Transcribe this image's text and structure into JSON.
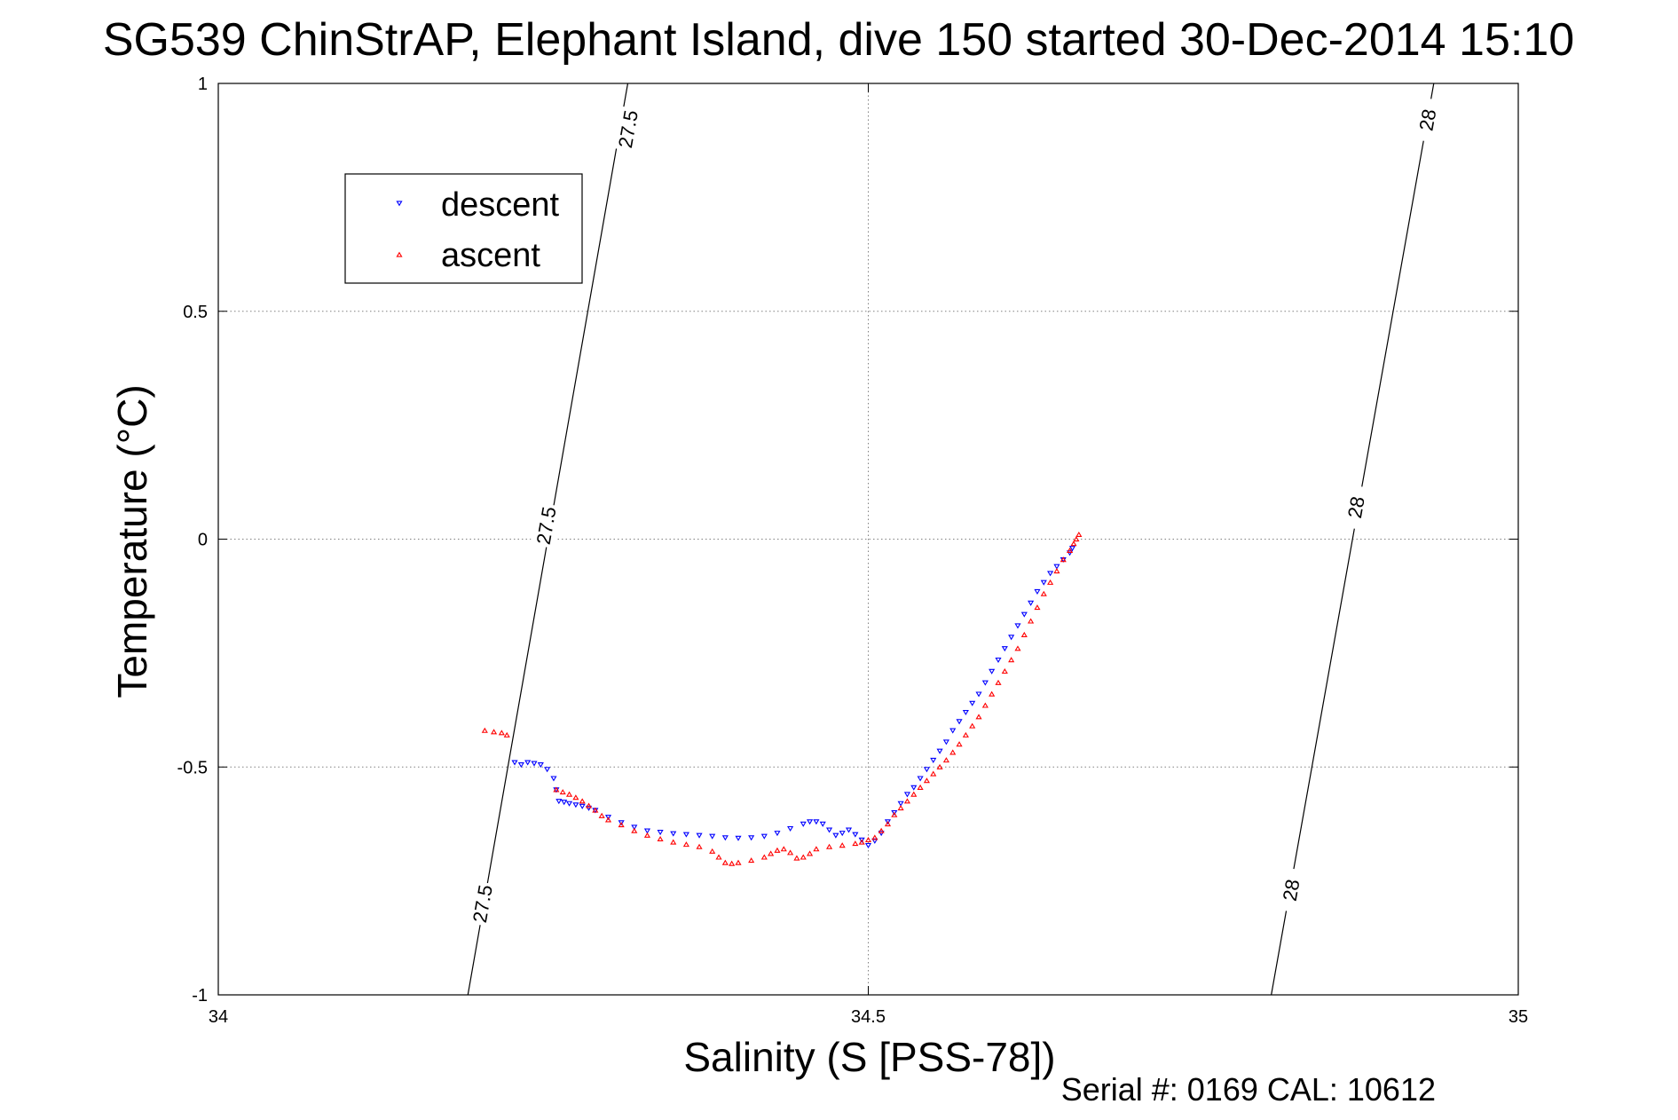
{
  "chart_data": {
    "type": "scatter",
    "title": "SG539 ChinStrAP, Elephant Island, dive 150 started 30-Dec-2014 15:10",
    "xlabel": "Salinity (S [PSS-78])",
    "ylabel": "Temperature (°C)",
    "xlim": [
      34,
      35
    ],
    "ylim": [
      -1,
      1
    ],
    "x_ticks": [
      34,
      34.5,
      35
    ],
    "x_tick_labels": [
      "34",
      "34.5",
      "35"
    ],
    "y_ticks": [
      -1,
      -0.5,
      0,
      0.5,
      1
    ],
    "y_tick_labels": [
      "-1",
      "-0.5",
      "0",
      "0.5",
      "1"
    ],
    "grid": true,
    "legend_position": "top-left",
    "footer": "Serial #: 0169 CAL: 10612",
    "colors": {
      "descent": "#0000ff",
      "ascent": "#ff0000",
      "contour": "#000000",
      "grid": "#808080"
    },
    "contours": [
      {
        "label": "27.5",
        "x": [
          34.192,
          34.315
        ],
        "y": [
          -1,
          1
        ],
        "label_positions": [
          [
            34.203,
            -0.8
          ],
          [
            34.252,
            0.03
          ],
          [
            34.315,
            0.9
          ]
        ]
      },
      {
        "label": "28",
        "x": [
          34.81,
          34.935
        ],
        "y": [
          -1,
          1
        ],
        "label_positions": [
          [
            34.825,
            -0.77
          ],
          [
            34.875,
            0.07
          ],
          [
            34.93,
            0.92
          ]
        ]
      }
    ],
    "series": [
      {
        "name": "descent",
        "marker": "triangle-down",
        "points": [
          [
            34.228,
            -0.49
          ],
          [
            34.233,
            -0.495
          ],
          [
            34.238,
            -0.49
          ],
          [
            34.243,
            -0.492
          ],
          [
            34.248,
            -0.495
          ],
          [
            34.253,
            -0.505
          ],
          [
            34.258,
            -0.525
          ],
          [
            34.26,
            -0.55
          ],
          [
            34.262,
            -0.575
          ],
          [
            34.266,
            -0.577
          ],
          [
            34.27,
            -0.58
          ],
          [
            34.275,
            -0.583
          ],
          [
            34.28,
            -0.586
          ],
          [
            34.285,
            -0.59
          ],
          [
            34.29,
            -0.595
          ],
          [
            34.3,
            -0.61
          ],
          [
            34.31,
            -0.622
          ],
          [
            34.32,
            -0.632
          ],
          [
            34.33,
            -0.64
          ],
          [
            34.34,
            -0.643
          ],
          [
            34.35,
            -0.646
          ],
          [
            34.36,
            -0.648
          ],
          [
            34.37,
            -0.65
          ],
          [
            34.38,
            -0.652
          ],
          [
            34.39,
            -0.655
          ],
          [
            34.4,
            -0.656
          ],
          [
            34.41,
            -0.655
          ],
          [
            34.42,
            -0.652
          ],
          [
            34.43,
            -0.645
          ],
          [
            34.44,
            -0.635
          ],
          [
            34.45,
            -0.625
          ],
          [
            34.455,
            -0.62
          ],
          [
            34.46,
            -0.62
          ],
          [
            34.465,
            -0.625
          ],
          [
            34.47,
            -0.638
          ],
          [
            34.475,
            -0.65
          ],
          [
            34.48,
            -0.645
          ],
          [
            34.485,
            -0.638
          ],
          [
            34.49,
            -0.648
          ],
          [
            34.495,
            -0.66
          ],
          [
            34.5,
            -0.672
          ],
          [
            34.505,
            -0.662
          ],
          [
            34.51,
            -0.645
          ],
          [
            34.515,
            -0.62
          ],
          [
            34.52,
            -0.6
          ],
          [
            34.525,
            -0.58
          ],
          [
            34.53,
            -0.56
          ],
          [
            34.535,
            -0.545
          ],
          [
            34.54,
            -0.525
          ],
          [
            34.545,
            -0.505
          ],
          [
            34.55,
            -0.485
          ],
          [
            34.555,
            -0.465
          ],
          [
            34.56,
            -0.445
          ],
          [
            34.565,
            -0.42
          ],
          [
            34.57,
            -0.4
          ],
          [
            34.575,
            -0.38
          ],
          [
            34.58,
            -0.36
          ],
          [
            34.585,
            -0.34
          ],
          [
            34.59,
            -0.315
          ],
          [
            34.595,
            -0.29
          ],
          [
            34.6,
            -0.265
          ],
          [
            34.605,
            -0.24
          ],
          [
            34.61,
            -0.215
          ],
          [
            34.615,
            -0.19
          ],
          [
            34.62,
            -0.165
          ],
          [
            34.625,
            -0.14
          ],
          [
            34.63,
            -0.115
          ],
          [
            34.635,
            -0.095
          ],
          [
            34.64,
            -0.075
          ],
          [
            34.645,
            -0.06
          ],
          [
            34.65,
            -0.045
          ],
          [
            34.655,
            -0.03
          ],
          [
            34.657,
            -0.02
          ]
        ]
      },
      {
        "name": "ascent",
        "marker": "triangle-up",
        "points": [
          [
            34.205,
            -0.42
          ],
          [
            34.212,
            -0.423
          ],
          [
            34.218,
            -0.425
          ],
          [
            34.222,
            -0.43
          ],
          [
            34.26,
            -0.55
          ],
          [
            34.265,
            -0.555
          ],
          [
            34.27,
            -0.56
          ],
          [
            34.275,
            -0.567
          ],
          [
            34.28,
            -0.575
          ],
          [
            34.285,
            -0.585
          ],
          [
            34.29,
            -0.595
          ],
          [
            34.295,
            -0.607
          ],
          [
            34.3,
            -0.616
          ],
          [
            34.31,
            -0.627
          ],
          [
            34.32,
            -0.64
          ],
          [
            34.33,
            -0.65
          ],
          [
            34.34,
            -0.658
          ],
          [
            34.35,
            -0.665
          ],
          [
            34.36,
            -0.67
          ],
          [
            34.37,
            -0.675
          ],
          [
            34.38,
            -0.685
          ],
          [
            34.385,
            -0.698
          ],
          [
            34.39,
            -0.71
          ],
          [
            34.395,
            -0.712
          ],
          [
            34.4,
            -0.71
          ],
          [
            34.41,
            -0.705
          ],
          [
            34.42,
            -0.698
          ],
          [
            34.425,
            -0.69
          ],
          [
            34.43,
            -0.683
          ],
          [
            34.435,
            -0.68
          ],
          [
            34.44,
            -0.688
          ],
          [
            34.445,
            -0.7
          ],
          [
            34.45,
            -0.698
          ],
          [
            34.455,
            -0.69
          ],
          [
            34.46,
            -0.68
          ],
          [
            34.47,
            -0.675
          ],
          [
            34.48,
            -0.672
          ],
          [
            34.49,
            -0.668
          ],
          [
            34.495,
            -0.665
          ],
          [
            34.5,
            -0.66
          ],
          [
            34.505,
            -0.655
          ],
          [
            34.51,
            -0.64
          ],
          [
            34.515,
            -0.625
          ],
          [
            34.52,
            -0.605
          ],
          [
            34.525,
            -0.59
          ],
          [
            34.53,
            -0.575
          ],
          [
            34.535,
            -0.56
          ],
          [
            34.54,
            -0.545
          ],
          [
            34.545,
            -0.53
          ],
          [
            34.55,
            -0.515
          ],
          [
            34.555,
            -0.5
          ],
          [
            34.56,
            -0.485
          ],
          [
            34.565,
            -0.468
          ],
          [
            34.57,
            -0.45
          ],
          [
            34.575,
            -0.43
          ],
          [
            34.58,
            -0.41
          ],
          [
            34.585,
            -0.39
          ],
          [
            34.59,
            -0.365
          ],
          [
            34.595,
            -0.34
          ],
          [
            34.6,
            -0.315
          ],
          [
            34.605,
            -0.29
          ],
          [
            34.61,
            -0.265
          ],
          [
            34.615,
            -0.24
          ],
          [
            34.62,
            -0.21
          ],
          [
            34.625,
            -0.18
          ],
          [
            34.63,
            -0.15
          ],
          [
            34.635,
            -0.12
          ],
          [
            34.64,
            -0.095
          ],
          [
            34.645,
            -0.07
          ],
          [
            34.65,
            -0.045
          ],
          [
            34.655,
            -0.025
          ],
          [
            34.658,
            -0.01
          ],
          [
            34.66,
            0.0
          ],
          [
            34.662,
            0.01
          ]
        ]
      }
    ]
  }
}
